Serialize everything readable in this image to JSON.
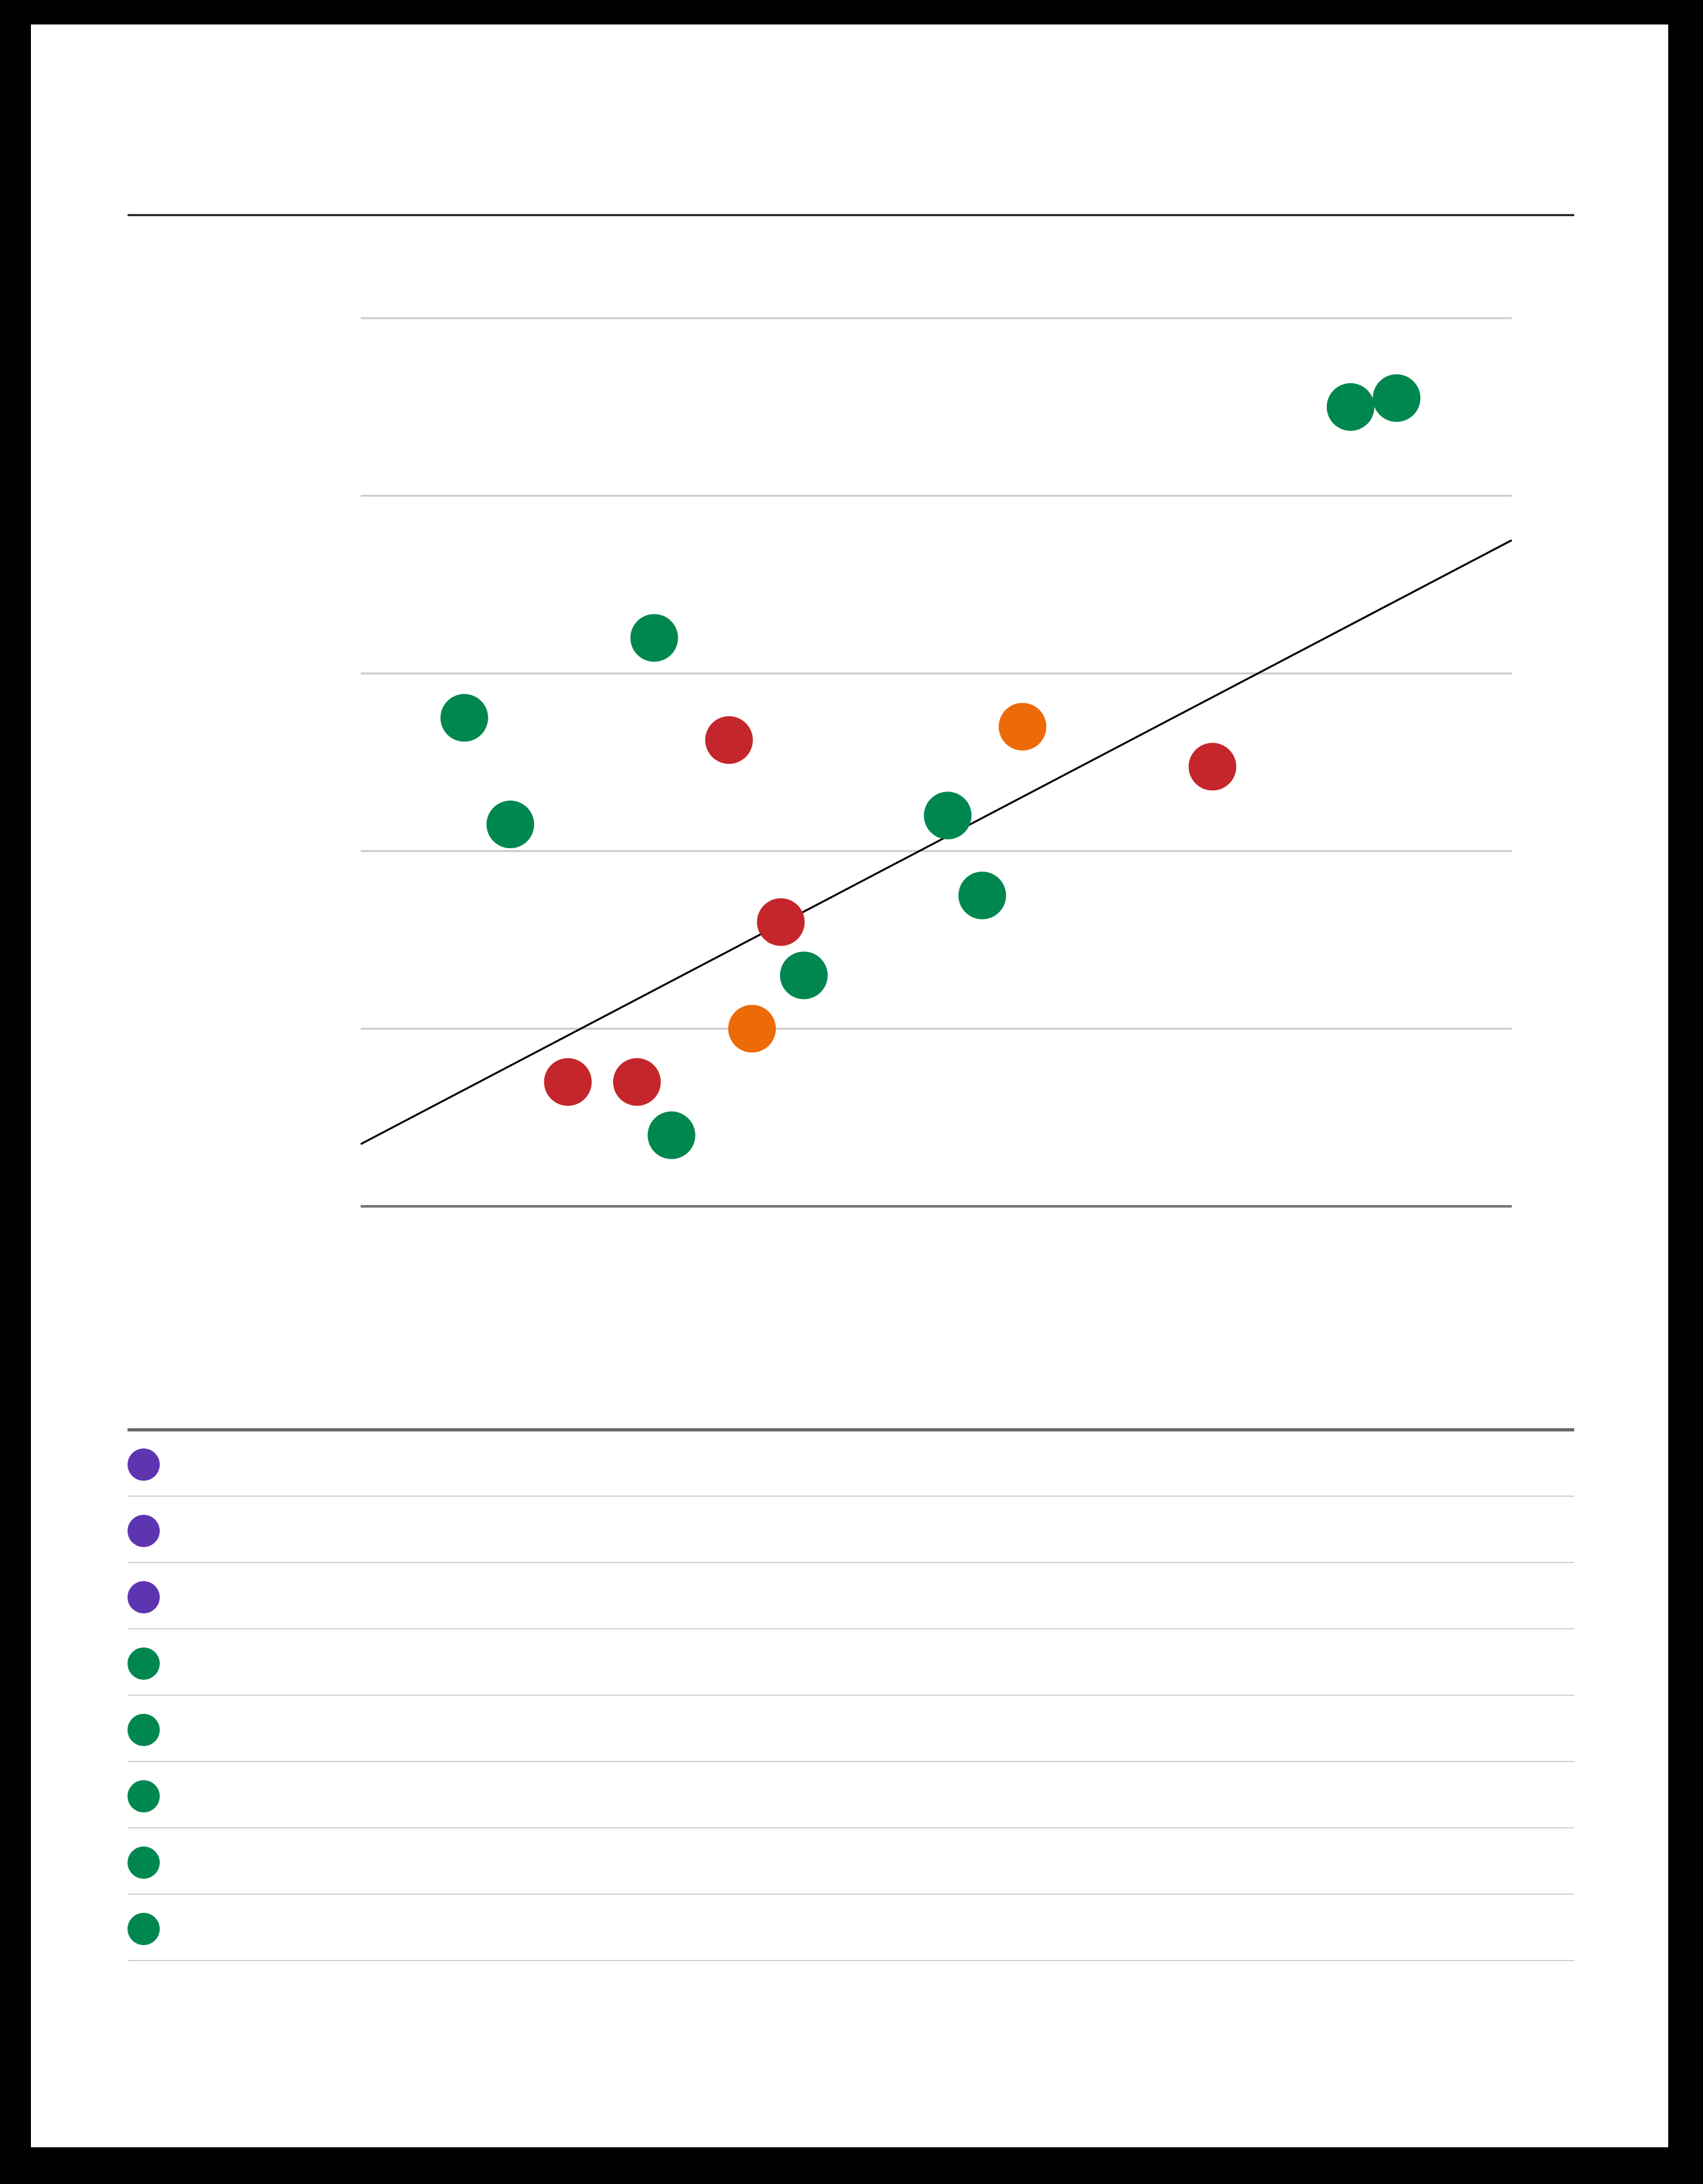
{
  "chart_data": {
    "type": "scatter",
    "xlim": [
      0,
      100
    ],
    "ylim": [
      0,
      100
    ],
    "grid": true,
    "y_gridlines": [
      0,
      20,
      40,
      60,
      80,
      100
    ],
    "trendline": {
      "x": [
        0,
        100
      ],
      "y": [
        7,
        75
      ]
    },
    "series": [
      {
        "color": "#00874f",
        "points": [
          {
            "x": 9,
            "y": 55
          },
          {
            "x": 13,
            "y": 43
          },
          {
            "x": 25.5,
            "y": 64
          },
          {
            "x": 27,
            "y": 8
          },
          {
            "x": 38.5,
            "y": 26
          },
          {
            "x": 51,
            "y": 44
          },
          {
            "x": 54,
            "y": 35
          },
          {
            "x": 86,
            "y": 90
          },
          {
            "x": 90,
            "y": 91
          }
        ]
      },
      {
        "color": "#c4262b",
        "points": [
          {
            "x": 18,
            "y": 14
          },
          {
            "x": 24,
            "y": 14
          },
          {
            "x": 32,
            "y": 52.5
          },
          {
            "x": 36.5,
            "y": 32
          },
          {
            "x": 74,
            "y": 49.5
          }
        ]
      },
      {
        "color": "#ec6a08",
        "points": [
          {
            "x": 34,
            "y": 20
          },
          {
            "x": 57.5,
            "y": 54
          }
        ]
      }
    ]
  },
  "legend": {
    "items": [
      {
        "color": "#5e35b1",
        "label": ""
      },
      {
        "color": "#5e35b1",
        "label": ""
      },
      {
        "color": "#5e35b1",
        "label": ""
      },
      {
        "color": "#00874f",
        "label": ""
      },
      {
        "color": "#00874f",
        "label": ""
      },
      {
        "color": "#00874f",
        "label": ""
      },
      {
        "color": "#00874f",
        "label": ""
      },
      {
        "color": "#00874f",
        "label": ""
      }
    ]
  }
}
